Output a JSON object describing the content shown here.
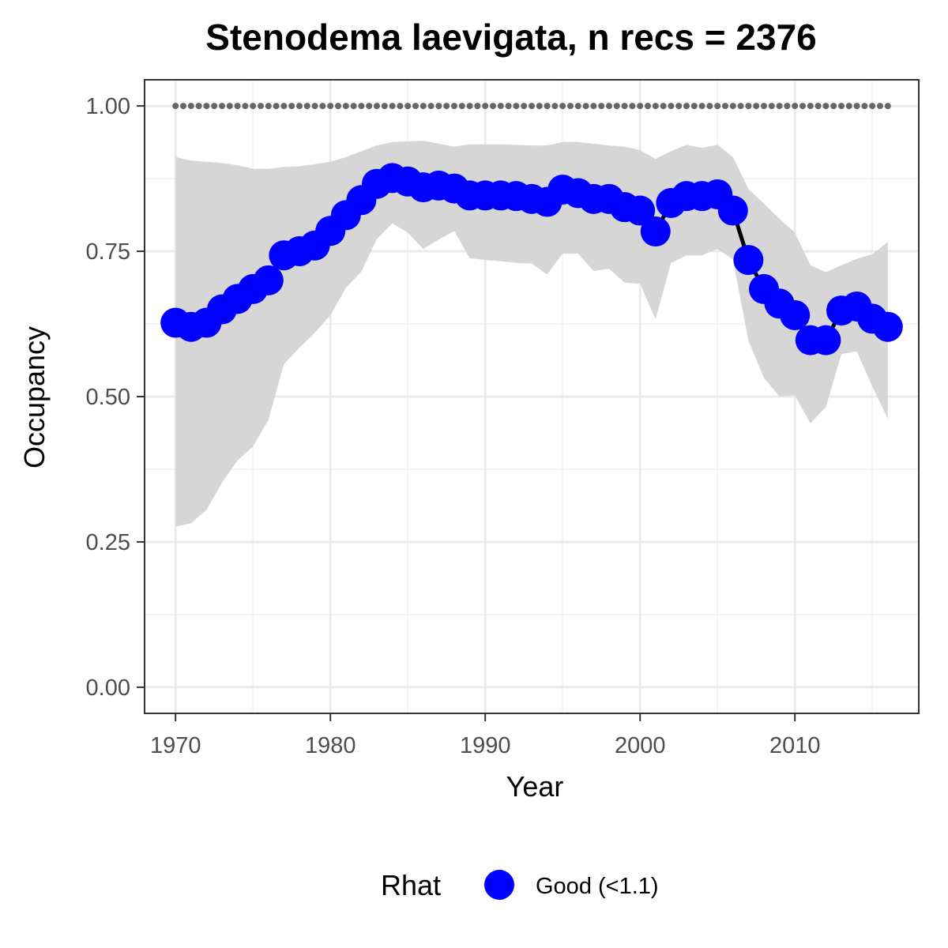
{
  "chart_data": {
    "type": "line",
    "title": "Stenodema laevigata, n recs = 2376",
    "xlabel": "Year",
    "ylabel": "Occupancy",
    "xlim": [
      1968,
      2018
    ],
    "ylim": [
      -0.045,
      1.045
    ],
    "x_ticks": [
      1970,
      1980,
      1990,
      2000,
      2010
    ],
    "y_ticks": [
      0.0,
      0.25,
      0.5,
      0.75,
      1.0
    ],
    "y_tick_labels": [
      "0.00",
      "0.25",
      "0.50",
      "0.75",
      "1.00"
    ],
    "grid": true,
    "reference_line": {
      "y": 1.0,
      "style": "dotted",
      "color": "#666666"
    },
    "series": [
      {
        "x": [
          1970,
          1971,
          1972,
          1973,
          1974,
          1975,
          1976,
          1977,
          1978,
          1979,
          1980,
          1981,
          1982,
          1983,
          1984,
          1985,
          1986,
          1987,
          1988,
          1989,
          1990,
          1991,
          1992,
          1993,
          1994,
          1995,
          1996,
          1997,
          1998,
          1999,
          2000,
          2001,
          2002,
          2003,
          2004,
          2005,
          2006,
          2007,
          2008,
          2009,
          2010,
          2011,
          2012,
          2013,
          2014,
          2015,
          2016
        ],
        "y": [
          0.627,
          0.62,
          0.627,
          0.65,
          0.668,
          0.685,
          0.7,
          0.743,
          0.75,
          0.76,
          0.785,
          0.812,
          0.838,
          0.866,
          0.876,
          0.87,
          0.86,
          0.863,
          0.858,
          0.846,
          0.846,
          0.846,
          0.845,
          0.84,
          0.835,
          0.856,
          0.85,
          0.84,
          0.84,
          0.826,
          0.82,
          0.784,
          0.833,
          0.845,
          0.845,
          0.848,
          0.82,
          0.735,
          0.685,
          0.66,
          0.64,
          0.597,
          0.597,
          0.648,
          0.655,
          0.634,
          0.62
        ],
        "lower": [
          0.276,
          0.282,
          0.305,
          0.352,
          0.39,
          0.414,
          0.46,
          0.556,
          0.584,
          0.61,
          0.64,
          0.687,
          0.715,
          0.771,
          0.798,
          0.782,
          0.754,
          0.77,
          0.785,
          0.738,
          0.735,
          0.733,
          0.73,
          0.729,
          0.71,
          0.746,
          0.746,
          0.716,
          0.72,
          0.696,
          0.694,
          0.633,
          0.73,
          0.743,
          0.743,
          0.754,
          0.736,
          0.596,
          0.532,
          0.5,
          0.502,
          0.454,
          0.482,
          0.573,
          0.578,
          0.517,
          0.462
        ],
        "upper": [
          0.912,
          0.906,
          0.904,
          0.902,
          0.898,
          0.892,
          0.892,
          0.895,
          0.896,
          0.9,
          0.904,
          0.912,
          0.922,
          0.932,
          0.938,
          0.939,
          0.94,
          0.935,
          0.93,
          0.934,
          0.934,
          0.934,
          0.933,
          0.932,
          0.932,
          0.938,
          0.938,
          0.935,
          0.932,
          0.93,
          0.924,
          0.909,
          0.922,
          0.933,
          0.928,
          0.933,
          0.912,
          0.857,
          0.832,
          0.806,
          0.782,
          0.726,
          0.714,
          0.726,
          0.737,
          0.745,
          0.766
        ],
        "color": "#0000ff",
        "line_color": "#000000",
        "ribbon_color": "#d6d6d6"
      }
    ],
    "legend": {
      "title": "Rhat",
      "placement": "bottom",
      "entries": [
        {
          "label": "Good (<1.1)",
          "color": "#0000ff"
        }
      ]
    }
  }
}
